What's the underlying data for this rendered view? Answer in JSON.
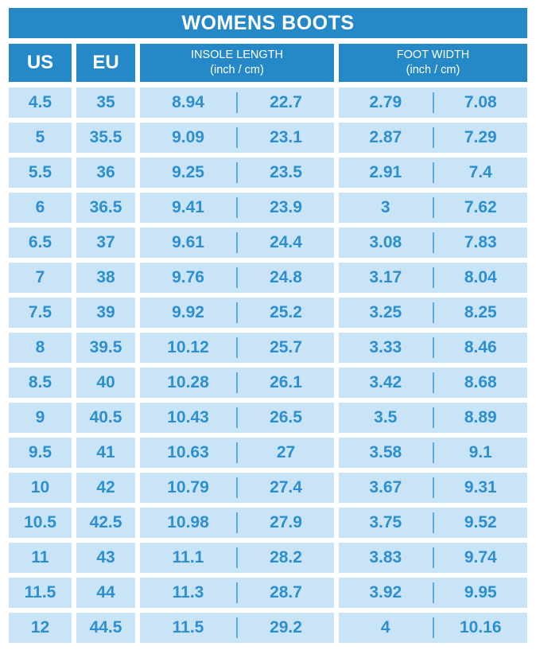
{
  "title": "WOMENS BOOTS",
  "header": {
    "us": "US",
    "eu": "EU",
    "insole": {
      "label": "INSOLE LENGTH",
      "unit": "(inch / cm)"
    },
    "foot": {
      "label": "FOOT WIDTH",
      "unit": "(inch / cm)"
    }
  },
  "chart_data": {
    "type": "table",
    "title": "WOMENS BOOTS",
    "columns": [
      "US",
      "EU",
      "Insole length (inch)",
      "Insole length (cm)",
      "Foot width (inch)",
      "Foot width (cm)"
    ],
    "rows": [
      [
        "4.5",
        "35",
        "8.94",
        "22.7",
        "2.79",
        "7.08"
      ],
      [
        "5",
        "35.5",
        "9.09",
        "23.1",
        "2.87",
        "7.29"
      ],
      [
        "5.5",
        "36",
        "9.25",
        "23.5",
        "2.91",
        "7.4"
      ],
      [
        "6",
        "36.5",
        "9.41",
        "23.9",
        "3",
        "7.62"
      ],
      [
        "6.5",
        "37",
        "9.61",
        "24.4",
        "3.08",
        "7.83"
      ],
      [
        "7",
        "38",
        "9.76",
        "24.8",
        "3.17",
        "8.04"
      ],
      [
        "7.5",
        "39",
        "9.92",
        "25.2",
        "3.25",
        "8.25"
      ],
      [
        "8",
        "39.5",
        "10.12",
        "25.7",
        "3.33",
        "8.46"
      ],
      [
        "8.5",
        "40",
        "10.28",
        "26.1",
        "3.42",
        "8.68"
      ],
      [
        "9",
        "40.5",
        "10.43",
        "26.5",
        "3.5",
        "8.89"
      ],
      [
        "9.5",
        "41",
        "10.63",
        "27",
        "3.58",
        "9.1"
      ],
      [
        "10",
        "42",
        "10.79",
        "27.4",
        "3.67",
        "9.31"
      ],
      [
        "10.5",
        "42.5",
        "10.98",
        "27.9",
        "3.75",
        "9.52"
      ],
      [
        "11",
        "43",
        "11.1",
        "28.2",
        "3.83",
        "9.74"
      ],
      [
        "11.5",
        "44",
        "11.3",
        "28.7",
        "3.92",
        "9.95"
      ],
      [
        "12",
        "44.5",
        "11.5",
        "29.2",
        "4",
        "10.16"
      ]
    ]
  },
  "colors": {
    "header_blue": "#2689c7",
    "cell_light_blue": "#c8e4f6",
    "value_text_blue": "#2e8fce",
    "inner_divider_blue": "#5fa9da",
    "background": "#ffffff",
    "header_text": "#ffffff"
  }
}
